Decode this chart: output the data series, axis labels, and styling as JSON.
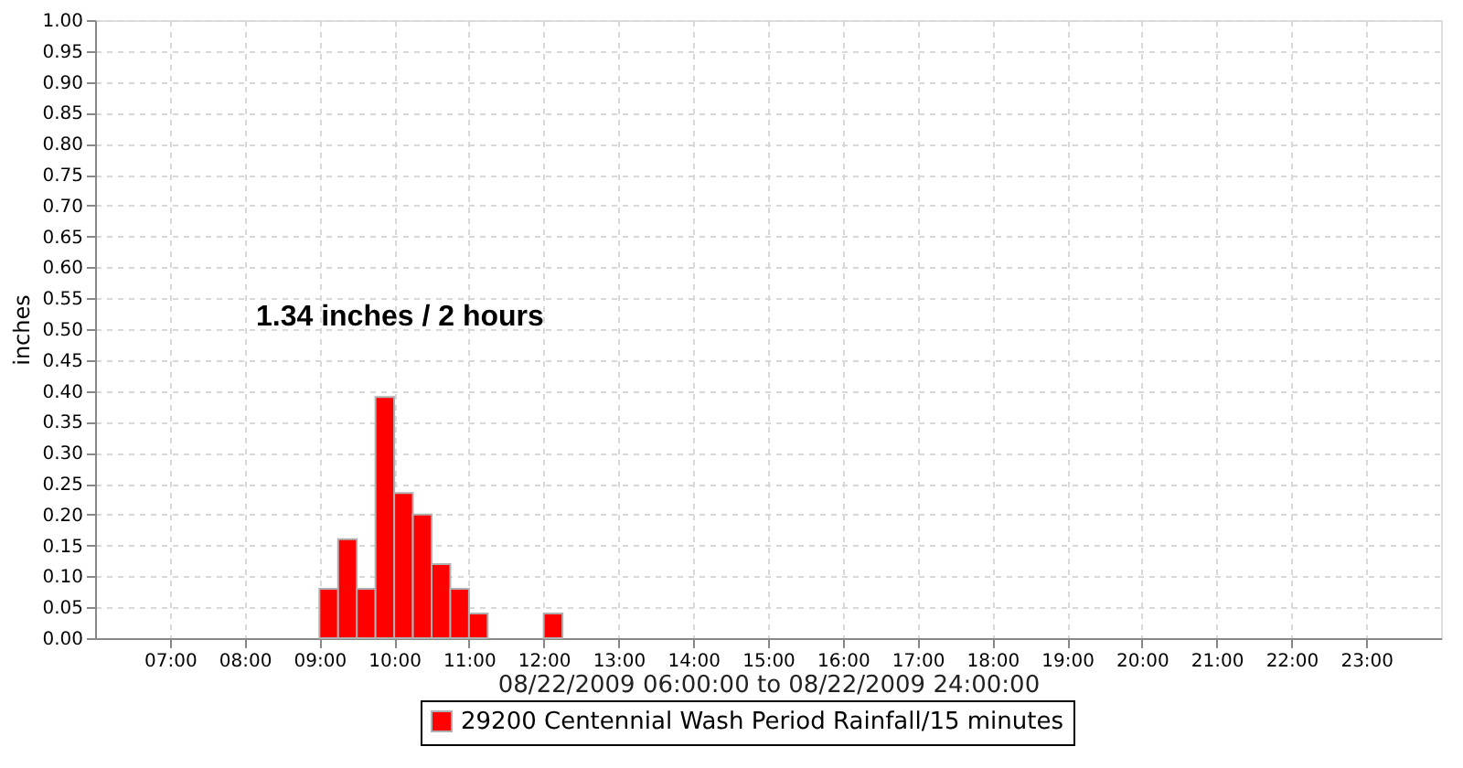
{
  "chart_data": {
    "type": "histogram",
    "xlabel": "08/22/2009 06:00:00 to 08/22/2009 24:00:00",
    "ylabel": "inches",
    "annotations": [
      "1.34 inches / 2 hours"
    ],
    "bins": [
      9,
      9.25,
      9.5,
      9.75,
      10,
      10.25,
      10.5,
      10.75,
      11,
      11.25,
      11.5,
      11.75,
      12,
      12.25
    ],
    "series": [
      {
        "name": "29200 Centennial Wash Period Rainfall/15 minutes",
        "color": "#ff0000",
        "values": [
          0.08,
          0.16,
          0.08,
          0.39,
          0.235,
          0.2,
          0.12,
          0.08,
          0.04,
          0,
          0,
          0,
          0.04
        ]
      }
    ],
    "xlim": [
      6,
      24
    ],
    "xticks": [
      {
        "value": 7,
        "label": "07:00"
      },
      {
        "value": 8,
        "label": "08:00"
      },
      {
        "value": 9,
        "label": "09:00"
      },
      {
        "value": 10,
        "label": "10:00"
      },
      {
        "value": 11,
        "label": "11:00"
      },
      {
        "value": 12,
        "label": "12:00"
      },
      {
        "value": 13,
        "label": "13:00"
      },
      {
        "value": 14,
        "label": "14:00"
      },
      {
        "value": 15,
        "label": "15:00"
      },
      {
        "value": 16,
        "label": "16:00"
      },
      {
        "value": 17,
        "label": "17:00"
      },
      {
        "value": 18,
        "label": "18:00"
      },
      {
        "value": 19,
        "label": "19:00"
      },
      {
        "value": 20,
        "label": "20:00"
      },
      {
        "value": 21,
        "label": "21:00"
      },
      {
        "value": 22,
        "label": "22:00"
      },
      {
        "value": 23,
        "label": "23:00"
      }
    ],
    "ylim": [
      0,
      1
    ],
    "yticks": [
      {
        "value": 0,
        "label": "0.00"
      },
      {
        "value": 0.05,
        "label": "0.05"
      },
      {
        "value": 0.1,
        "label": "0.10"
      },
      {
        "value": 0.15,
        "label": "0.15"
      },
      {
        "value": 0.2,
        "label": "0.20"
      },
      {
        "value": 0.25,
        "label": "0.25"
      },
      {
        "value": 0.3,
        "label": "0.30"
      },
      {
        "value": 0.35,
        "label": "0.35"
      },
      {
        "value": 0.4,
        "label": "0.40"
      },
      {
        "value": 0.45,
        "label": "0.45"
      },
      {
        "value": 0.5,
        "label": "0.50"
      },
      {
        "value": 0.55,
        "label": "0.55"
      },
      {
        "value": 0.6,
        "label": "0.60"
      },
      {
        "value": 0.65,
        "label": "0.65"
      },
      {
        "value": 0.7,
        "label": "0.70"
      },
      {
        "value": 0.75,
        "label": "0.75"
      },
      {
        "value": 0.8,
        "label": "0.80"
      },
      {
        "value": 0.85,
        "label": "0.85"
      },
      {
        "value": 0.9,
        "label": "0.90"
      },
      {
        "value": 0.95,
        "label": "0.95"
      },
      {
        "value": 1,
        "label": "1.00"
      }
    ],
    "grid": true,
    "legend": "bottom"
  }
}
